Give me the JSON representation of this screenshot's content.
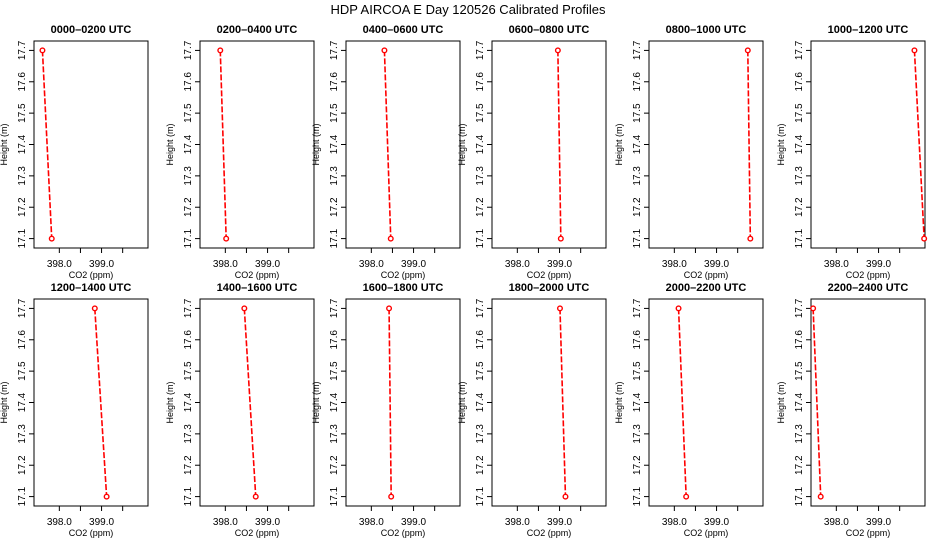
{
  "title": "HDP AIRCOA E  Day 120526  Calibrated Profiles",
  "colors": {
    "series": "#ff0000",
    "axis": "#000000",
    "background": "#ffffff"
  },
  "chart_data": [
    {
      "type": "line",
      "title": "0000–0200 UTC",
      "xlabel": "CO2 (ppm)",
      "ylabel": "Height (m)",
      "xlim": [
        397.4,
        400.1
      ],
      "ylim": [
        17.07,
        17.73
      ],
      "xticks": [
        "398.0",
        "399.0"
      ],
      "yticks": [
        "17.1",
        "17.2",
        "17.3",
        "17.4",
        "17.5",
        "17.6",
        "17.7"
      ],
      "x": [
        397.6,
        397.82
      ],
      "y": [
        17.7,
        17.1
      ]
    },
    {
      "type": "line",
      "title": "0200–0400 UTC",
      "xlabel": "CO2 (ppm)",
      "ylabel": "Height (m)",
      "xlim": [
        397.4,
        400.1
      ],
      "ylim": [
        17.07,
        17.73
      ],
      "xticks": [
        "398.0",
        "399.0"
      ],
      "yticks": [
        "17.1",
        "17.2",
        "17.3",
        "17.4",
        "17.5",
        "17.6",
        "17.7"
      ],
      "x": [
        397.88,
        398.02
      ],
      "y": [
        17.7,
        17.1
      ]
    },
    {
      "type": "line",
      "title": "0400–0600 UTC",
      "xlabel": "CO2 (ppm)",
      "ylabel": "Height (m)",
      "xlim": [
        397.4,
        400.1
      ],
      "ylim": [
        17.07,
        17.73
      ],
      "xticks": [
        "398.0",
        "399.0"
      ],
      "yticks": [
        "17.1",
        "17.2",
        "17.3",
        "17.4",
        "17.5",
        "17.6",
        "17.7"
      ],
      "x": [
        398.31,
        398.46
      ],
      "y": [
        17.7,
        17.1
      ]
    },
    {
      "type": "line",
      "title": "0600–0800 UTC",
      "xlabel": "CO2 (ppm)",
      "ylabel": "Height (m)",
      "xlim": [
        397.4,
        400.1
      ],
      "ylim": [
        17.07,
        17.73
      ],
      "xticks": [
        "398.0",
        "399.0"
      ],
      "yticks": [
        "17.1",
        "17.2",
        "17.3",
        "17.4",
        "17.5",
        "17.6",
        "17.7"
      ],
      "x": [
        398.96,
        399.03
      ],
      "y": [
        17.7,
        17.1
      ]
    },
    {
      "type": "line",
      "title": "0800–1000 UTC",
      "xlabel": "CO2 (ppm)",
      "ylabel": "Height (m)",
      "xlim": [
        397.4,
        400.1
      ],
      "ylim": [
        17.07,
        17.73
      ],
      "xticks": [
        "398.0",
        "399.0"
      ],
      "yticks": [
        "17.1",
        "17.2",
        "17.3",
        "17.4",
        "17.5",
        "17.6",
        "17.7"
      ],
      "x": [
        399.74,
        399.8
      ],
      "y": [
        17.7,
        17.1
      ]
    },
    {
      "type": "line",
      "title": "1000–1200 UTC",
      "xlabel": "CO2 (ppm)",
      "ylabel": "Height (m)",
      "xlim": [
        397.4,
        400.1
      ],
      "ylim": [
        17.07,
        17.73
      ],
      "xticks": [
        "398.0",
        "399.0"
      ],
      "yticks": [
        "17.1",
        "17.2",
        "17.3",
        "17.4",
        "17.5",
        "17.6",
        "17.7"
      ],
      "x": [
        399.85,
        400.08
      ],
      "y": [
        17.7,
        17.1
      ]
    },
    {
      "type": "line",
      "title": "1200–1400 UTC",
      "xlabel": "CO2 (ppm)",
      "ylabel": "Height (m)",
      "xlim": [
        397.4,
        400.1
      ],
      "ylim": [
        17.07,
        17.73
      ],
      "xticks": [
        "398.0",
        "399.0"
      ],
      "yticks": [
        "17.1",
        "17.2",
        "17.3",
        "17.4",
        "17.5",
        "17.6",
        "17.7"
      ],
      "x": [
        398.84,
        399.12
      ],
      "y": [
        17.7,
        17.1
      ]
    },
    {
      "type": "line",
      "title": "1400–1600 UTC",
      "xlabel": "CO2 (ppm)",
      "ylabel": "Height (m)",
      "xlim": [
        397.4,
        400.1
      ],
      "ylim": [
        17.07,
        17.73
      ],
      "xticks": [
        "398.0",
        "399.0"
      ],
      "yticks": [
        "17.1",
        "17.2",
        "17.3",
        "17.4",
        "17.5",
        "17.6",
        "17.7"
      ],
      "x": [
        398.45,
        398.72
      ],
      "y": [
        17.7,
        17.1
      ]
    },
    {
      "type": "line",
      "title": "1600–1800 UTC",
      "xlabel": "CO2 (ppm)",
      "ylabel": "Height (m)",
      "xlim": [
        397.4,
        400.1
      ],
      "ylim": [
        17.07,
        17.73
      ],
      "xticks": [
        "398.0",
        "399.0"
      ],
      "yticks": [
        "17.1",
        "17.2",
        "17.3",
        "17.4",
        "17.5",
        "17.6",
        "17.7"
      ],
      "x": [
        398.42,
        398.47
      ],
      "y": [
        17.7,
        17.1
      ]
    },
    {
      "type": "line",
      "title": "1800–2000 UTC",
      "xlabel": "CO2 (ppm)",
      "ylabel": "Height (m)",
      "xlim": [
        397.4,
        400.1
      ],
      "ylim": [
        17.07,
        17.73
      ],
      "xticks": [
        "398.0",
        "399.0"
      ],
      "yticks": [
        "17.1",
        "17.2",
        "17.3",
        "17.4",
        "17.5",
        "17.6",
        "17.7"
      ],
      "x": [
        399.01,
        399.14
      ],
      "y": [
        17.7,
        17.1
      ]
    },
    {
      "type": "line",
      "title": "2000–2200 UTC",
      "xlabel": "CO2 (ppm)",
      "ylabel": "Height (m)",
      "xlim": [
        397.4,
        400.1
      ],
      "ylim": [
        17.07,
        17.73
      ],
      "xticks": [
        "398.0",
        "399.0"
      ],
      "yticks": [
        "17.1",
        "17.2",
        "17.3",
        "17.4",
        "17.5",
        "17.6",
        "17.7"
      ],
      "x": [
        398.1,
        398.28
      ],
      "y": [
        17.7,
        17.1
      ]
    },
    {
      "type": "line",
      "title": "2200–2400 UTC",
      "xlabel": "CO2 (ppm)",
      "ylabel": "Height (m)",
      "xlim": [
        397.4,
        400.1
      ],
      "ylim": [
        17.07,
        17.73
      ],
      "xticks": [
        "398.0",
        "399.0"
      ],
      "yticks": [
        "17.1",
        "17.2",
        "17.3",
        "17.4",
        "17.5",
        "17.6",
        "17.7"
      ],
      "x": [
        397.45,
        397.63
      ],
      "y": [
        17.7,
        17.1
      ]
    }
  ]
}
